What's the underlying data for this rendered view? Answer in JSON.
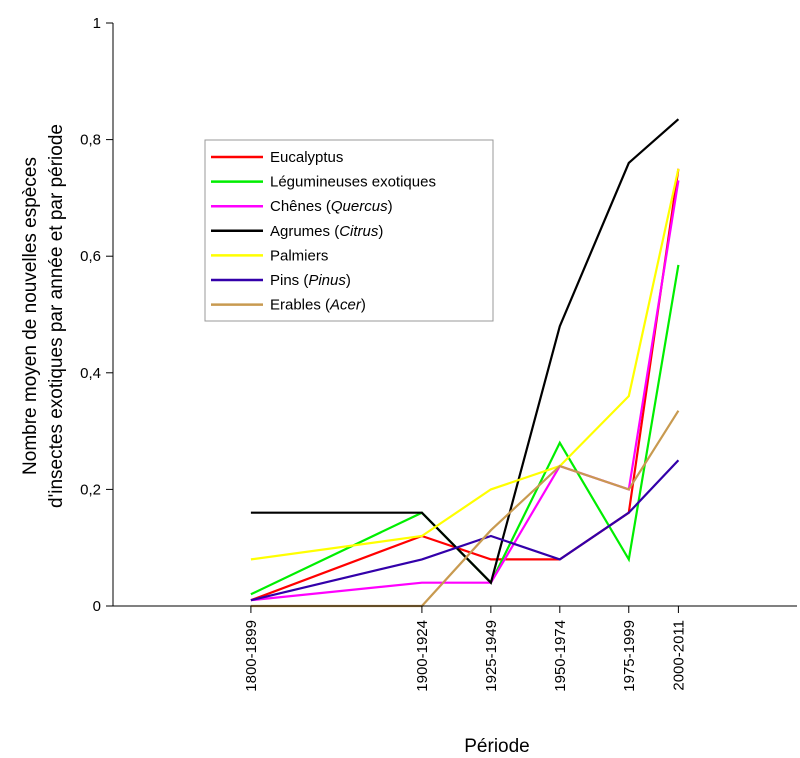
{
  "chart_data": {
    "type": "line",
    "xlabel": "Période",
    "ylabel_line1": "Nombre moyen de nouvelles espèces",
    "ylabel_line2": "d'insectes exotiques par année et par période",
    "ylim": [
      0,
      1
    ],
    "yticks": [
      "0",
      "0,2",
      "0,4",
      "0,6",
      "0,8",
      "1"
    ],
    "x_mid_years": [
      1850,
      1912,
      1937,
      1962,
      1987,
      2005
    ],
    "categories": [
      "1800-1899",
      "1900-1924",
      "1925-1949",
      "1950-1974",
      "1975-1999",
      "2000-2011"
    ],
    "x_axis_range": [
      1800,
      2048
    ],
    "grid": false,
    "legend_position": "upper-left",
    "series": [
      {
        "name": "Eucalyptus",
        "italic": "",
        "suffix": "",
        "color": "#ff0000",
        "values": [
          0.01,
          0.12,
          0.08,
          0.08,
          0.16,
          0.75
        ]
      },
      {
        "name": "Légumineuses exotiques",
        "italic": "",
        "suffix": "",
        "color": "#00ee00",
        "values": [
          0.02,
          0.16,
          0.04,
          0.28,
          0.08,
          0.585
        ]
      },
      {
        "name": "Chênes (",
        "italic": "Quercus",
        "suffix": ")",
        "color": "#ff00ff",
        "values": [
          0.01,
          0.04,
          0.04,
          0.24,
          0.2,
          0.73
        ]
      },
      {
        "name": "Agrumes (",
        "italic": "Citrus",
        "suffix": ")",
        "color": "#000000",
        "values": [
          0.16,
          0.16,
          0.04,
          0.48,
          0.76,
          0.835
        ]
      },
      {
        "name": "Palmiers",
        "italic": "",
        "suffix": "",
        "color": "#ffff00",
        "values": [
          0.08,
          0.12,
          0.2,
          0.24,
          0.36,
          0.75
        ]
      },
      {
        "name": "Pins (",
        "italic": "Pinus",
        "suffix": ")",
        "color": "#3300aa",
        "values": [
          0.01,
          0.08,
          0.12,
          0.08,
          0.16,
          0.25
        ]
      },
      {
        "name": "Erables (",
        "italic": "Acer",
        "suffix": ")",
        "color": "#c89a50",
        "values": [
          0.0,
          0.0,
          0.13,
          0.24,
          0.2,
          0.335
        ]
      }
    ]
  }
}
